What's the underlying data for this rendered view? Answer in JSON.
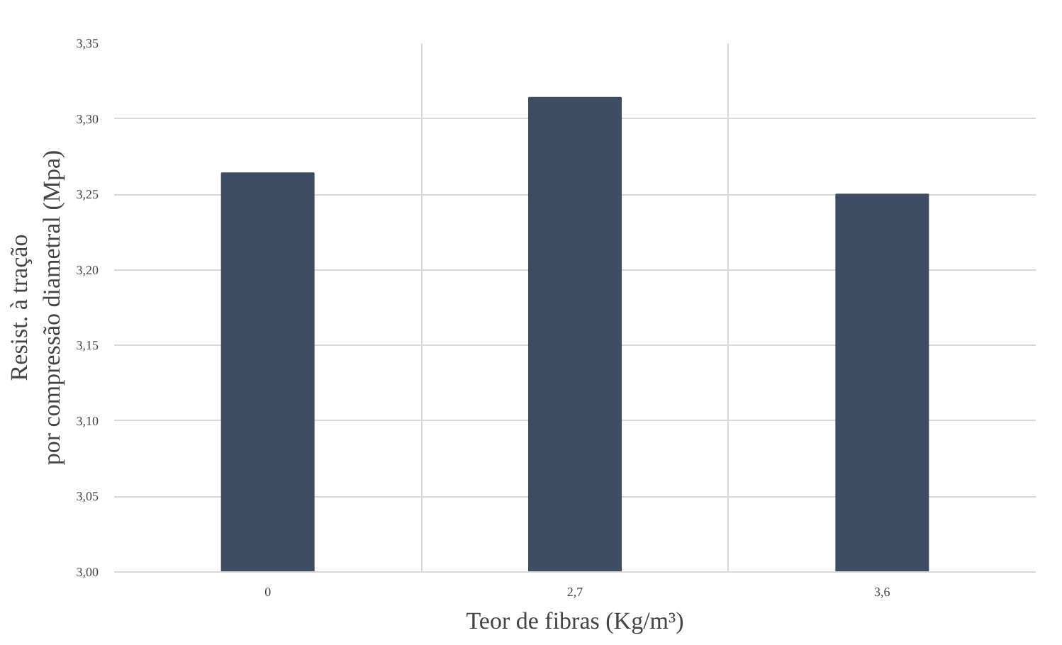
{
  "chart_data": {
    "type": "bar",
    "xlabel": "Teor de fibras (Kg/m³)",
    "ylabel": "Resist. à tração por compressão diametral (Mpa)",
    "categories": [
      "0",
      "2,7",
      "3,6"
    ],
    "values": [
      3.264,
      3.314,
      3.25
    ],
    "color": "#3e4d63",
    "ylim": [
      3.0,
      3.35
    ],
    "yticks": [
      {
        "value": 3.0,
        "label": "3,00"
      },
      {
        "value": 3.05,
        "label": "3,05"
      },
      {
        "value": 3.1,
        "label": "3,10"
      },
      {
        "value": 3.15,
        "label": "3,15"
      },
      {
        "value": 3.2,
        "label": "3,20"
      },
      {
        "value": 3.25,
        "label": "3,25"
      },
      {
        "value": 3.3,
        "label": "3,30"
      },
      {
        "value": 3.35,
        "label": "3,35"
      }
    ],
    "grid": true
  }
}
